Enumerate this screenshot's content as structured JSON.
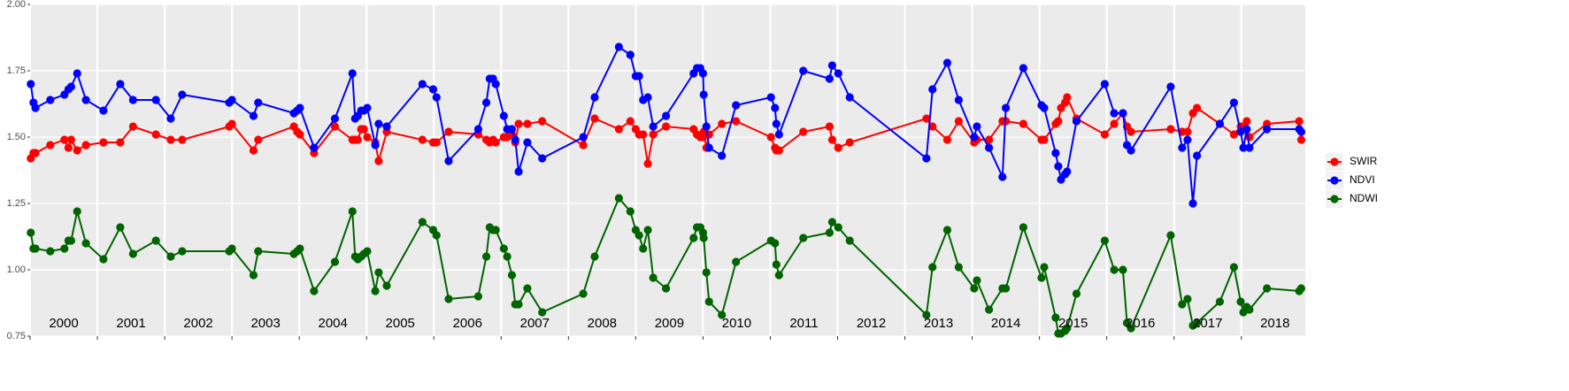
{
  "chart_data": {
    "type": "line",
    "x": [
      2000.01,
      2000.05,
      2000.08,
      2000.3,
      2000.51,
      2000.57,
      2000.61,
      2000.7,
      2000.83,
      2001.09,
      2001.34,
      2001.53,
      2001.87,
      2002.09,
      2002.26,
      2002.96,
      2003.0,
      2003.32,
      2003.39,
      2003.92,
      2003.97,
      2004.01,
      2004.22,
      2004.53,
      2004.79,
      2004.83,
      2004.87,
      2004.92,
      2004.96,
      2005.01,
      2005.13,
      2005.18,
      2005.3,
      2005.83,
      2005.99,
      2006.04,
      2006.22,
      2006.66,
      2006.78,
      2006.83,
      2006.88,
      2006.92,
      2007.04,
      2007.09,
      2007.16,
      2007.21,
      2007.26,
      2007.39,
      2007.61,
      2008.22,
      2008.39,
      2008.75,
      2008.92,
      2009.0,
      2009.05,
      2009.11,
      2009.18,
      2009.26,
      2009.45,
      2009.86,
      2009.91,
      2009.96,
      2010.0,
      2010.01,
      2010.05,
      2010.09,
      2010.28,
      2010.49,
      2011.01,
      2011.07,
      2011.09,
      2011.13,
      2011.49,
      2011.88,
      2011.92,
      2012.01,
      2012.18,
      2013.32,
      2013.41,
      2013.63,
      2013.8,
      2014.03,
      2014.07,
      2014.25,
      2014.45,
      2014.5,
      2014.76,
      2015.03,
      2015.07,
      2015.24,
      2015.28,
      2015.32,
      2015.38,
      2015.41,
      2015.55,
      2015.97,
      2016.11,
      2016.24,
      2016.3,
      2016.36,
      2016.95,
      2017.12,
      2017.2,
      2017.28,
      2017.34,
      2017.68,
      2017.89,
      2017.99,
      2018.03,
      2018.08,
      2018.12,
      2018.38,
      2018.86,
      2018.89
    ],
    "series": [
      {
        "name": "SWIR",
        "color": "#ff0000",
        "values": [
          1.42,
          1.44,
          1.44,
          1.47,
          1.49,
          1.46,
          1.49,
          1.45,
          1.47,
          1.48,
          1.48,
          1.54,
          1.51,
          1.49,
          1.49,
          1.54,
          1.55,
          1.45,
          1.49,
          1.54,
          1.52,
          1.51,
          1.44,
          1.54,
          1.49,
          1.49,
          1.49,
          1.53,
          1.53,
          1.5,
          1.48,
          1.41,
          1.52,
          1.49,
          1.48,
          1.48,
          1.52,
          1.51,
          1.49,
          1.48,
          1.49,
          1.48,
          1.5,
          1.5,
          1.51,
          1.48,
          1.55,
          1.55,
          1.56,
          1.47,
          1.57,
          1.53,
          1.56,
          1.53,
          1.51,
          1.51,
          1.4,
          1.51,
          1.54,
          1.53,
          1.51,
          1.5,
          1.5,
          1.52,
          1.46,
          1.51,
          1.55,
          1.56,
          1.5,
          1.46,
          1.45,
          1.45,
          1.52,
          1.54,
          1.49,
          1.46,
          1.48,
          1.57,
          1.54,
          1.49,
          1.56,
          1.48,
          1.49,
          1.49,
          1.56,
          1.56,
          1.55,
          1.49,
          1.49,
          1.55,
          1.56,
          1.61,
          1.63,
          1.65,
          1.57,
          1.51,
          1.55,
          1.59,
          1.54,
          1.52,
          1.53,
          1.52,
          1.52,
          1.59,
          1.61,
          1.55,
          1.51,
          1.54,
          1.54,
          1.56,
          1.5,
          1.55,
          1.56,
          1.49
        ]
      },
      {
        "name": "NDVI",
        "color": "#0000ff",
        "values": [
          1.7,
          1.63,
          1.61,
          1.64,
          1.66,
          1.68,
          1.69,
          1.74,
          1.64,
          1.6,
          1.7,
          1.64,
          1.64,
          1.57,
          1.66,
          1.63,
          1.64,
          1.58,
          1.63,
          1.59,
          1.6,
          1.61,
          1.46,
          1.57,
          1.74,
          1.57,
          1.58,
          1.6,
          1.6,
          1.61,
          1.47,
          1.55,
          1.54,
          1.7,
          1.68,
          1.65,
          1.41,
          1.53,
          1.63,
          1.72,
          1.72,
          1.7,
          1.58,
          1.53,
          1.53,
          1.49,
          1.37,
          1.48,
          1.42,
          1.5,
          1.65,
          1.84,
          1.81,
          1.73,
          1.73,
          1.64,
          1.65,
          1.54,
          1.58,
          1.74,
          1.76,
          1.76,
          1.74,
          1.66,
          1.54,
          1.46,
          1.43,
          1.62,
          1.65,
          1.61,
          1.55,
          1.51,
          1.75,
          1.72,
          1.77,
          1.74,
          1.65,
          1.42,
          1.68,
          1.78,
          1.64,
          1.5,
          1.54,
          1.46,
          1.35,
          1.61,
          1.76,
          1.62,
          1.61,
          1.44,
          1.39,
          1.34,
          1.36,
          1.37,
          1.56,
          1.7,
          1.59,
          1.59,
          1.47,
          1.45,
          1.69,
          1.46,
          1.49,
          1.25,
          1.43,
          1.55,
          1.63,
          1.52,
          1.46,
          1.53,
          1.46,
          1.53,
          1.53,
          1.52
        ]
      },
      {
        "name": "NDWI",
        "color": "#006400",
        "values": [
          1.14,
          1.08,
          1.08,
          1.07,
          1.08,
          1.11,
          1.11,
          1.22,
          1.1,
          1.04,
          1.16,
          1.06,
          1.11,
          1.05,
          1.07,
          1.07,
          1.08,
          0.98,
          1.07,
          1.06,
          1.07,
          1.08,
          0.92,
          1.03,
          1.22,
          1.05,
          1.04,
          1.05,
          1.06,
          1.07,
          0.92,
          0.99,
          0.94,
          1.18,
          1.15,
          1.13,
          0.89,
          0.9,
          1.05,
          1.16,
          1.15,
          1.15,
          1.08,
          1.05,
          0.98,
          0.87,
          0.87,
          0.93,
          0.84,
          0.91,
          1.05,
          1.27,
          1.22,
          1.15,
          1.13,
          1.08,
          1.15,
          0.97,
          0.93,
          1.12,
          1.16,
          1.16,
          1.14,
          1.12,
          0.99,
          0.88,
          0.83,
          1.03,
          1.11,
          1.1,
          1.02,
          0.98,
          1.12,
          1.14,
          1.18,
          1.16,
          1.11,
          0.83,
          1.01,
          1.15,
          1.01,
          0.93,
          0.96,
          0.85,
          0.93,
          0.93,
          1.16,
          0.97,
          1.01,
          0.82,
          0.76,
          0.76,
          0.77,
          0.78,
          0.91,
          1.11,
          1.0,
          1.0,
          0.8,
          0.78,
          1.13,
          0.87,
          0.89,
          0.79,
          0.8,
          0.88,
          1.01,
          0.88,
          0.84,
          0.86,
          0.85,
          0.93,
          0.92,
          0.93
        ]
      }
    ],
    "xlim": [
      2000,
      2018.95
    ],
    "xticks": [
      2000,
      2001,
      2002,
      2003,
      2004,
      2005,
      2006,
      2007,
      2008,
      2009,
      2010,
      2011,
      2012,
      2013,
      2014,
      2015,
      2016,
      2017,
      2018
    ],
    "ylim": [
      0.75,
      2.0
    ],
    "yticks": [
      {
        "value": 0.75,
        "label": "0.75"
      },
      {
        "value": 1.0,
        "label": "1.00"
      },
      {
        "value": 1.25,
        "label": "1.25"
      },
      {
        "value": 1.5,
        "label": "1.50"
      },
      {
        "value": 1.75,
        "label": "1.75"
      },
      {
        "value": 2.0,
        "label": "2.00"
      }
    ],
    "grid": true,
    "legend": "right"
  }
}
